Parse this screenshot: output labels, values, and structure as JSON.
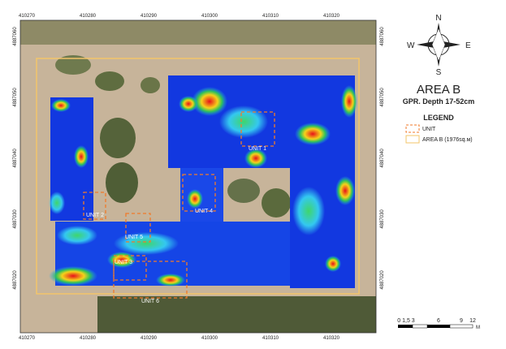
{
  "header": {
    "title": "AREA B",
    "subtitle": "GPR. Depth 17-52cm"
  },
  "legend": {
    "title": "LEGEND",
    "items": [
      "UNIT",
      "AREA B (1976sq.м)"
    ]
  },
  "compass": {
    "north": "N",
    "south": "S",
    "east": "E",
    "west": "W"
  },
  "grid": {
    "x_labels": [
      "410270",
      "410280",
      "410290",
      "410300",
      "410310",
      "410320"
    ],
    "y_labels": [
      "4887060",
      "4887050",
      "4887040",
      "4887030",
      "4887020"
    ]
  },
  "units": [
    "UNIT 1",
    "UNIT 2",
    "UNIT 4",
    "UNIT 5",
    "UNIT 3",
    "UNIT 6"
  ],
  "scale": {
    "labels": [
      "0 1,5 3",
      "6",
      "9",
      "12"
    ],
    "unit": "M"
  }
}
